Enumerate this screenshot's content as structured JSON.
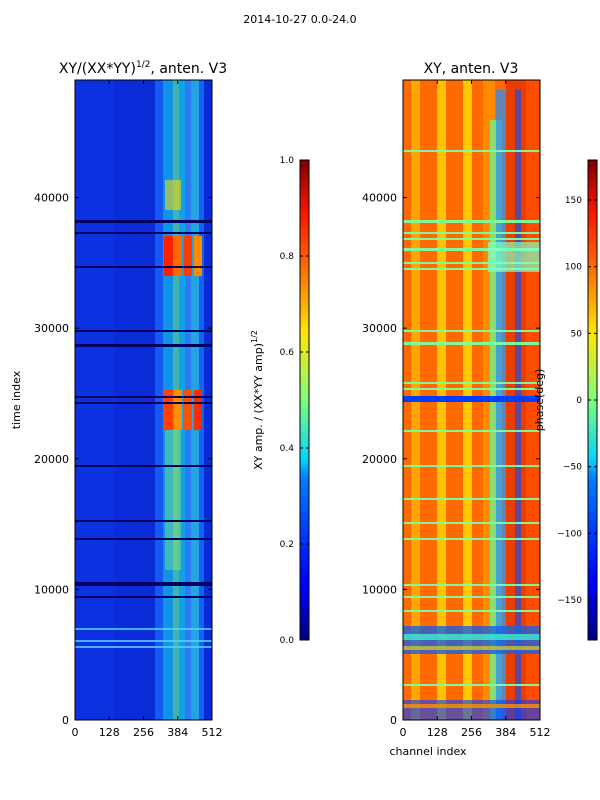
{
  "suptitle": "2014-10-27 0.0-24.0",
  "chart_data": [
    {
      "type": "heatmap",
      "title": "XY/(XX*YY)^1/2, anten. V3",
      "title_main": "XY/(XX*YY)",
      "title_sup": "1/2",
      "title_tail": ", anten. V3",
      "xlabel": "",
      "ylabel": "time index",
      "xlim": [
        0,
        512
      ],
      "ylim": [
        0,
        49000
      ],
      "xticks": [
        0,
        128,
        256,
        384,
        512
      ],
      "yticks": [
        0,
        10000,
        20000,
        30000,
        40000
      ],
      "colorbar": {
        "label": "XY amp. / (XX*YY amp)^1/2",
        "label_main": "XY amp. / (XX*YY amp)",
        "label_sup": "1/2",
        "range": [
          0.0,
          1.0
        ],
        "ticks": [
          "0.0",
          "0.2",
          "0.4",
          "0.6",
          "0.8",
          "1.0"
        ],
        "colormap": "jet"
      }
    },
    {
      "type": "heatmap",
      "title": "XY, anten. V3",
      "xlabel": "channel index",
      "ylabel": "",
      "xlim": [
        0,
        512
      ],
      "ylim": [
        0,
        49000
      ],
      "xticks": [
        0,
        128,
        256,
        384,
        512
      ],
      "yticks": [
        0,
        10000,
        20000,
        30000,
        40000
      ],
      "colorbar": {
        "label": "phase(deg)",
        "range": [
          -180,
          180
        ],
        "ticks": [
          "150",
          "100",
          "50",
          "0",
          "−50",
          "−100",
          "−150"
        ],
        "colormap": "jet"
      }
    }
  ]
}
